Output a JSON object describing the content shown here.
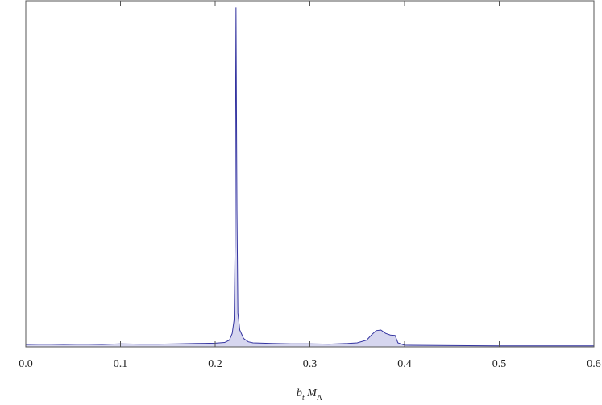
{
  "chart_data": {
    "type": "area",
    "x_label": [
      "b",
      "t",
      "M",
      "Λ"
    ],
    "x": [
      0,
      0.02,
      0.04,
      0.06,
      0.08,
      0.1,
      0.12,
      0.14,
      0.16,
      0.18,
      0.2,
      0.21,
      0.215,
      0.218,
      0.22,
      0.221,
      0.222,
      0.223,
      0.224,
      0.226,
      0.23,
      0.235,
      0.24,
      0.26,
      0.28,
      0.3,
      0.32,
      0.34,
      0.35,
      0.36,
      0.365,
      0.37,
      0.375,
      0.38,
      0.385,
      0.39,
      0.393,
      0.4,
      0.45,
      0.5,
      0.55,
      0.6
    ],
    "values": [
      0.007,
      0.008,
      0.007,
      0.008,
      0.007,
      0.009,
      0.008,
      0.008,
      0.009,
      0.01,
      0.011,
      0.013,
      0.02,
      0.04,
      0.08,
      0.3,
      1.0,
      0.4,
      0.1,
      0.05,
      0.025,
      0.015,
      0.012,
      0.01,
      0.009,
      0.009,
      0.008,
      0.01,
      0.012,
      0.02,
      0.035,
      0.048,
      0.05,
      0.04,
      0.035,
      0.034,
      0.012,
      0.005,
      0.004,
      0.003,
      0.003,
      0.003
    ],
    "color": "#3434a0",
    "fill": "#d6d6ef",
    "xlim": [
      0,
      0.6
    ],
    "xticks": [
      {
        "value": 0,
        "label": "0.0"
      },
      0.1,
      0.2,
      0.3,
      0.4,
      0.5,
      0.6
    ],
    "ylim": [
      0,
      1.02
    ]
  }
}
